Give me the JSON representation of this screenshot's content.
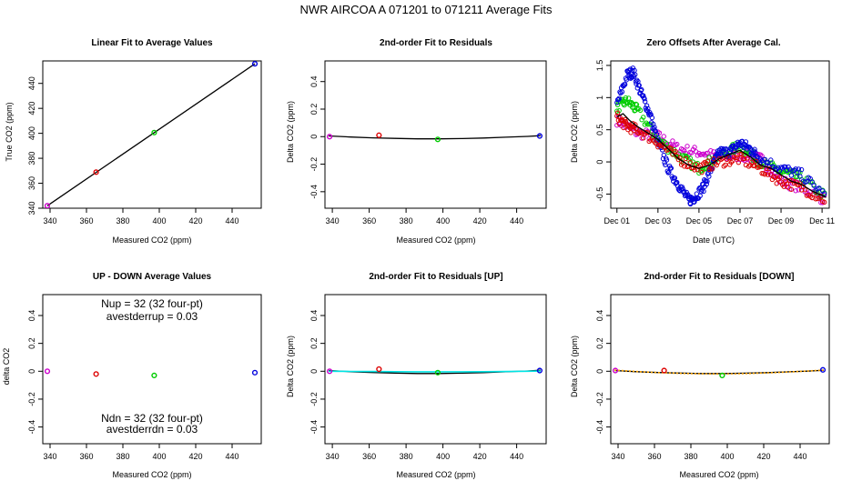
{
  "figure": {
    "title": "NWR   AIRCOA A    071201 to 071211    Average Fits"
  },
  "colors": {
    "purple": "#cc00cc",
    "red": "#dd0000",
    "green": "#00cc00",
    "blue": "#0000dd",
    "black": "#000000",
    "cyan": "#00e5e5",
    "orange": "#ffa500"
  },
  "chart_data": [
    {
      "id": "p1",
      "type": "scatter",
      "title": "Linear Fit to Average Values",
      "xlabel": "Measured CO2 (ppm)",
      "ylabel": "True CO2 (ppm)",
      "xlim": [
        336,
        456
      ],
      "ylim": [
        340,
        458
      ],
      "xticks": [
        340,
        360,
        380,
        400,
        420,
        440
      ],
      "yticks": [
        340,
        360,
        380,
        400,
        420,
        440
      ],
      "points": [
        {
          "x": 338.5,
          "y": 342.0,
          "color": "purple"
        },
        {
          "x": 365.3,
          "y": 368.9,
          "color": "red"
        },
        {
          "x": 397.2,
          "y": 400.6,
          "color": "green"
        },
        {
          "x": 452.5,
          "y": 455.7,
          "color": "blue"
        }
      ],
      "lines": [
        {
          "name": "linear fit",
          "color": "black",
          "x": [
            338.5,
            452.5
          ],
          "y": [
            342.0,
            455.7
          ]
        }
      ]
    },
    {
      "id": "p2",
      "type": "scatter",
      "title": "2nd-order Fit to Residuals",
      "xlabel": "Measured CO2 (ppm)",
      "ylabel": "Delta CO2 (ppm)",
      "xlim": [
        336,
        456
      ],
      "ylim": [
        -0.52,
        0.55
      ],
      "xticks": [
        340,
        360,
        380,
        400,
        420,
        440
      ],
      "yticks": [
        -0.4,
        -0.2,
        0.0,
        0.2,
        0.4
      ],
      "points": [
        {
          "x": 338.5,
          "y": 0.0,
          "color": "purple"
        },
        {
          "x": 365.3,
          "y": 0.01,
          "color": "red"
        },
        {
          "x": 397.2,
          "y": -0.02,
          "color": "green"
        },
        {
          "x": 452.5,
          "y": 0.005,
          "color": "blue"
        }
      ],
      "lines": [
        {
          "name": "2nd-order fit",
          "color": "black",
          "x": [
            338,
            350,
            362,
            374,
            386,
            398,
            410,
            422,
            434,
            446,
            453
          ],
          "y": [
            0.005,
            -0.003,
            -0.009,
            -0.013,
            -0.016,
            -0.016,
            -0.014,
            -0.01,
            -0.004,
            0.002,
            0.007
          ]
        }
      ]
    },
    {
      "id": "p3",
      "type": "scatter",
      "title": "Zero Offsets After Average Cal.",
      "xlabel": "Date (UTC)",
      "ylabel": "Delta CO2 (ppm)",
      "xlim": [
        0.7,
        11.35
      ],
      "ylim": [
        -0.72,
        1.57
      ],
      "xticks": [
        1,
        3,
        5,
        7,
        9,
        11
      ],
      "xticklabels": [
        "Dec 01",
        "Dec 03",
        "Dec 05",
        "Dec 07",
        "Dec 09",
        "Dec 11"
      ],
      "yticks": [
        -0.5,
        0.0,
        0.5,
        1.0,
        1.5
      ],
      "series": [
        {
          "name": "purple",
          "color": "purple",
          "marker": "o",
          "x": [
            1.0,
            2.0,
            3.0,
            4.0,
            5.0,
            6.0,
            7.0,
            8.0,
            9.0,
            10.0,
            11.2
          ],
          "y": [
            0.65,
            0.45,
            0.4,
            0.2,
            0.15,
            0.08,
            0.1,
            0.05,
            -0.3,
            -0.4,
            -0.6
          ]
        },
        {
          "name": "green",
          "color": "green",
          "marker": "o",
          "x": [
            1.0,
            1.5,
            2.0,
            3.0,
            4.0,
            5.0,
            6.0,
            7.0,
            8.0,
            9.0,
            10.0,
            11.2
          ],
          "y": [
            0.85,
            0.95,
            0.8,
            0.35,
            0.1,
            -0.1,
            0.1,
            0.25,
            0.0,
            -0.15,
            -0.25,
            -0.55
          ]
        },
        {
          "name": "blue",
          "color": "blue",
          "marker": "o",
          "x": [
            1.0,
            1.5,
            1.8,
            2.2,
            2.6,
            3.0,
            3.5,
            4.0,
            4.5,
            4.8,
            5.2,
            5.6,
            6.0,
            6.5,
            7.0,
            7.5,
            8.0,
            9.0,
            10.0,
            11.2
          ],
          "y": [
            0.9,
            1.35,
            1.4,
            1.05,
            0.75,
            0.3,
            -0.1,
            -0.35,
            -0.6,
            -0.55,
            -0.4,
            -0.1,
            0.15,
            0.15,
            0.3,
            0.2,
            0.05,
            -0.1,
            -0.2,
            -0.55
          ]
        },
        {
          "name": "red",
          "color": "red",
          "marker": "o",
          "x": [
            1.0,
            1.5,
            2.0,
            3.0,
            4.0,
            5.0,
            6.0,
            7.0,
            8.0,
            9.0,
            10.0,
            11.2
          ],
          "y": [
            0.7,
            0.55,
            0.5,
            0.3,
            0.05,
            -0.1,
            0.0,
            0.05,
            -0.1,
            -0.3,
            -0.4,
            -0.6
          ]
        }
      ],
      "lines": [
        {
          "name": "mean offset",
          "color": "black",
          "x": [
            1.0,
            1.3,
            1.6,
            2.0,
            2.5,
            3.0,
            3.5,
            4.0,
            4.5,
            5.0,
            5.5,
            6.0,
            6.5,
            7.0,
            7.5,
            8.0,
            8.5,
            9.0,
            9.5,
            10.0,
            10.5,
            11.2
          ],
          "y": [
            0.7,
            0.75,
            0.65,
            0.55,
            0.45,
            0.35,
            0.2,
            0.05,
            -0.05,
            -0.1,
            -0.05,
            0.05,
            0.12,
            0.18,
            0.08,
            -0.05,
            -0.1,
            -0.2,
            -0.3,
            -0.35,
            -0.45,
            -0.55
          ]
        }
      ]
    },
    {
      "id": "p4",
      "type": "scatter",
      "title": "UP - DOWN Average Values",
      "xlabel": "Measured CO2 (ppm)",
      "ylabel": "delta CO2",
      "xlim": [
        336,
        456
      ],
      "ylim": [
        -0.52,
        0.55
      ],
      "xticks": [
        340,
        360,
        380,
        400,
        420,
        440
      ],
      "yticks": [
        -0.4,
        -0.2,
        0.0,
        0.2,
        0.4
      ],
      "points": [
        {
          "x": 338.5,
          "y": 0.0,
          "color": "purple"
        },
        {
          "x": 365.3,
          "y": -0.02,
          "color": "red"
        },
        {
          "x": 397.2,
          "y": -0.03,
          "color": "green"
        },
        {
          "x": 452.5,
          "y": -0.01,
          "color": "blue"
        }
      ],
      "annotations": {
        "nup": "Nup = 32 (32 four-pt)",
        "avestderrup": "avestderrup =  0.03",
        "ndn": "Ndn = 32 (32 four-pt)",
        "avestderrdn": "avestderrdn =  0.03"
      }
    },
    {
      "id": "p5",
      "type": "scatter",
      "title": "2nd-order Fit to Residuals [UP]",
      "xlabel": "Measured CO2 (ppm)",
      "ylabel": "Delta CO2 (ppm)",
      "xlim": [
        336,
        456
      ],
      "ylim": [
        -0.52,
        0.55
      ],
      "xticks": [
        340,
        360,
        380,
        400,
        420,
        440
      ],
      "yticks": [
        -0.4,
        -0.2,
        0.0,
        0.2,
        0.4
      ],
      "points": [
        {
          "x": 338.5,
          "y": 0.0,
          "color": "purple"
        },
        {
          "x": 365.3,
          "y": 0.015,
          "color": "red"
        },
        {
          "x": 397.2,
          "y": -0.01,
          "color": "green"
        },
        {
          "x": 452.5,
          "y": 0.005,
          "color": "blue"
        }
      ],
      "lines": [
        {
          "name": "overall fit",
          "color": "black",
          "x": [
            338,
            350,
            362,
            374,
            386,
            398,
            410,
            422,
            434,
            446,
            453
          ],
          "y": [
            0.005,
            -0.003,
            -0.009,
            -0.013,
            -0.016,
            -0.016,
            -0.014,
            -0.01,
            -0.004,
            0.002,
            0.007
          ]
        },
        {
          "name": "UP fit",
          "color": "cyan",
          "x": [
            338,
            350,
            362,
            374,
            386,
            398,
            410,
            422,
            434,
            446,
            453
          ],
          "y": [
            0.0,
            -0.001,
            -0.002,
            -0.003,
            -0.004,
            -0.004,
            -0.004,
            -0.003,
            -0.002,
            0.0,
            0.001
          ]
        }
      ]
    },
    {
      "id": "p6",
      "type": "scatter",
      "title": "2nd-order Fit to Residuals [DOWN]",
      "xlabel": "Measured CO2 (ppm)",
      "ylabel": "Delta CO2 (ppm)",
      "xlim": [
        336,
        456
      ],
      "ylim": [
        -0.52,
        0.55
      ],
      "xticks": [
        340,
        360,
        380,
        400,
        420,
        440
      ],
      "yticks": [
        -0.4,
        -0.2,
        0.0,
        0.2,
        0.4
      ],
      "points": [
        {
          "x": 338.5,
          "y": 0.005,
          "color": "purple"
        },
        {
          "x": 365.3,
          "y": 0.005,
          "color": "red"
        },
        {
          "x": 397.2,
          "y": -0.03,
          "color": "green"
        },
        {
          "x": 452.5,
          "y": 0.01,
          "color": "blue"
        }
      ],
      "lines": [
        {
          "name": "overall fit",
          "color": "black",
          "x": [
            338,
            350,
            362,
            374,
            386,
            398,
            410,
            422,
            434,
            446,
            453
          ],
          "y": [
            0.005,
            -0.003,
            -0.009,
            -0.013,
            -0.016,
            -0.016,
            -0.014,
            -0.01,
            -0.004,
            0.002,
            0.007
          ]
        },
        {
          "name": "DOWN fit",
          "color": "orange",
          "dashed": true,
          "x": [
            338,
            350,
            362,
            374,
            386,
            398,
            410,
            422,
            434,
            446,
            453
          ],
          "y": [
            0.008,
            -0.002,
            -0.01,
            -0.015,
            -0.018,
            -0.019,
            -0.017,
            -0.012,
            -0.005,
            0.003,
            0.008
          ]
        }
      ]
    }
  ]
}
